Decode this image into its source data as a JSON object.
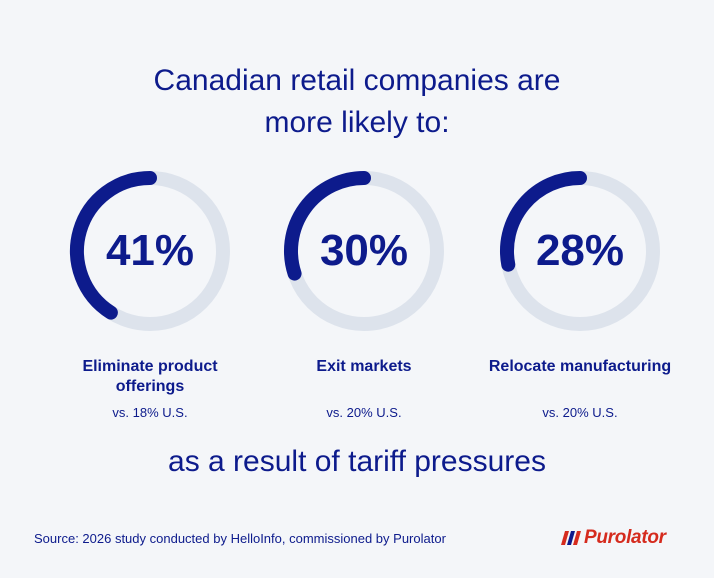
{
  "title": {
    "line1": "Canadian retail companies are",
    "line2": "more likely to:"
  },
  "colors": {
    "accent": "#0d1b8c",
    "track": "#dde3ec",
    "brand": "#d52b1e"
  },
  "chart_data": {
    "type": "donut",
    "items": [
      {
        "value": 41,
        "display": "41%",
        "label": "Eliminate product offerings",
        "comparison": "vs. 18% U.S."
      },
      {
        "value": 30,
        "display": "30%",
        "label": "Exit markets",
        "comparison": "vs. 20% U.S."
      },
      {
        "value": 28,
        "display": "28%",
        "label": "Relocate manufacturing",
        "comparison": "vs. 20% U.S."
      }
    ],
    "max": 100
  },
  "footer_line": "as a result of tariff pressures",
  "source": "Source: 2026 study conducted by HelloInfo, commissioned by Purolator",
  "logo": {
    "text": "Purolator",
    "icon": "purolator-stripes-icon"
  }
}
